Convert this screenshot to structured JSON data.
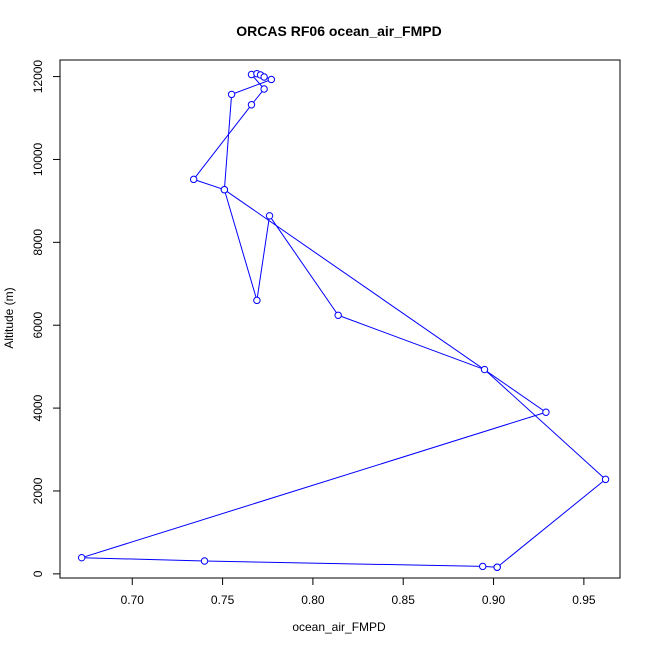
{
  "chart_data": {
    "type": "line",
    "title": "ORCAS RF06 ocean_air_FMPD",
    "xlabel": "ocean_air_FMPD",
    "ylabel": "Altitude (m)",
    "xlim": [
      0.66,
      0.97
    ],
    "ylim": [
      -100,
      12400
    ],
    "x_ticks": [
      0.7,
      0.75,
      0.8,
      0.85,
      0.9,
      0.95
    ],
    "x_tick_labels": [
      "0.70",
      "0.75",
      "0.80",
      "0.85",
      "0.90",
      "0.95"
    ],
    "y_ticks": [
      0,
      2000,
      4000,
      6000,
      8000,
      10000,
      12000
    ],
    "y_tick_labels": [
      "0",
      "2000",
      "4000",
      "6000",
      "8000",
      "10000",
      "12000"
    ],
    "grid": false,
    "legend": "none",
    "colors": {
      "series": "#0000ff",
      "axis": "#000000"
    },
    "marker": "open-circle",
    "series": [
      {
        "x": [
          0.902,
          0.894,
          0.74,
          0.672,
          0.929,
          0.751,
          0.734,
          0.766,
          0.773,
          0.766,
          0.769,
          0.771,
          0.773,
          0.777,
          0.755,
          0.751,
          0.769,
          0.776,
          0.814,
          0.895,
          0.962,
          0.902
        ],
        "y": [
          160,
          180,
          310,
          390,
          3900,
          9270,
          9520,
          11320,
          11700,
          12050,
          12070,
          12040,
          11990,
          11930,
          11570,
          9270,
          6600,
          8640,
          6240,
          4930,
          2280,
          160
        ]
      }
    ]
  }
}
